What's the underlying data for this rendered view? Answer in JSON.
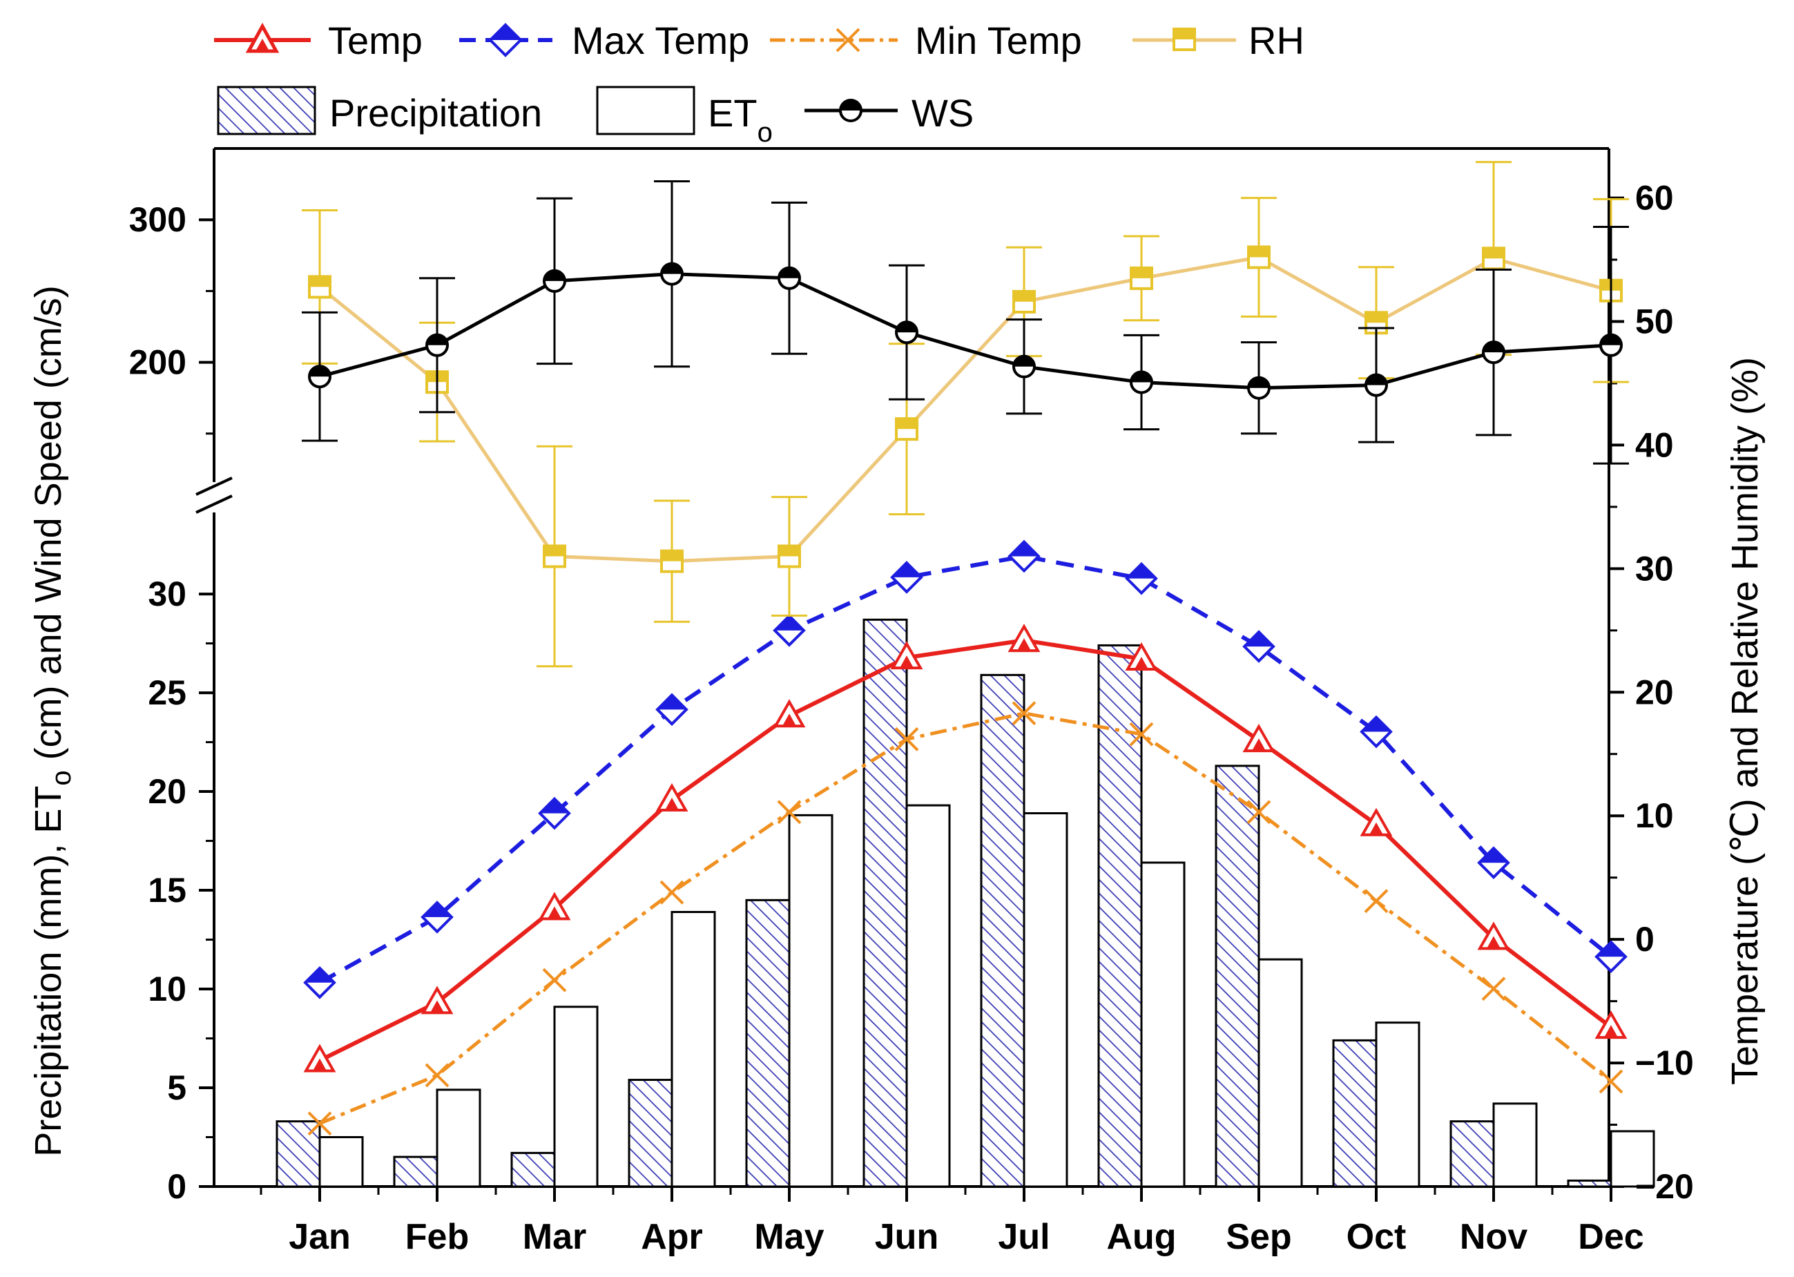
{
  "chart_data": {
    "type": "bar",
    "categories": [
      "Jan",
      "Feb",
      "Mar",
      "Apr",
      "May",
      "Jun",
      "Jul",
      "Aug",
      "Sep",
      "Oct",
      "Nov",
      "Dec"
    ],
    "left_axis": {
      "label": "Precipitation (mm), ET",
      "label_sub": "o",
      "label_tail": " (cm) and Wind Speed (cm/s)",
      "lower_ticks": [
        0,
        5,
        10,
        15,
        20,
        25,
        30
      ],
      "lower_range": [
        0,
        33.5
      ],
      "upper_ticks": [
        200,
        300
      ],
      "upper_range": [
        115,
        350
      ]
    },
    "right_axis": {
      "label": "Temperature (℃) and Relative Humidity (%)",
      "ticks": [
        -20,
        -10,
        0,
        10,
        20,
        30,
        40,
        50,
        60
      ],
      "tick_labels": [
        "−20",
        "−10",
        "0",
        "10",
        "20",
        "30",
        "40",
        "50",
        "60"
      ],
      "range": [
        -20,
        64
      ]
    },
    "bars": [
      {
        "name": "Precipitation",
        "values": [
          3.3,
          1.5,
          1.7,
          5.4,
          14.5,
          28.7,
          25.9,
          27.4,
          21.3,
          7.4,
          3.3,
          0.3
        ]
      },
      {
        "name": "ET",
        "name_sub": "o",
        "values": [
          2.5,
          4.9,
          9.1,
          13.9,
          18.8,
          19.3,
          18.9,
          16.4,
          11.5,
          8.3,
          4.2,
          2.8
        ]
      }
    ],
    "series": [
      {
        "name": "Temp",
        "axis": "right",
        "values": [
          -9.8,
          -5.1,
          2.5,
          11.3,
          18.1,
          22.8,
          24.2,
          22.7,
          16.1,
          9.3,
          0.1,
          -7.1
        ],
        "color": "#e8211c"
      },
      {
        "name": "Max Temp",
        "axis": "right",
        "values": [
          -3.5,
          1.8,
          10.2,
          18.6,
          25.0,
          29.3,
          31.0,
          29.2,
          23.7,
          16.8,
          6.2,
          -1.4
        ],
        "color": "#1d1de0"
      },
      {
        "name": "Min Temp",
        "axis": "right",
        "values": [
          -14.9,
          -11.0,
          -3.3,
          3.8,
          10.3,
          16.2,
          18.3,
          16.6,
          10.3,
          3.1,
          -4.0,
          -11.5
        ],
        "color": "#f09020"
      },
      {
        "name": "RH",
        "axis": "right",
        "values": [
          52.8,
          45.1,
          31.0,
          30.6,
          31.0,
          41.3,
          51.6,
          53.5,
          55.2,
          49.9,
          55.1,
          52.5
        ],
        "err": [
          6.2,
          4.8,
          8.9,
          4.9,
          4.8,
          6.9,
          4.4,
          3.4,
          4.8,
          4.5,
          7.8,
          7.4
        ],
        "color": "#e7c42a"
      },
      {
        "name": "WS",
        "axis": "left-upper",
        "values": [
          190,
          212,
          257,
          262,
          259,
          221,
          197,
          186,
          182,
          184,
          207,
          212
        ],
        "err": [
          45,
          47,
          58,
          65,
          53,
          47,
          33,
          33,
          32,
          40,
          58,
          83
        ],
        "color": "#000000"
      }
    ],
    "legend": [
      {
        "name": "Temp"
      },
      {
        "name": "Max Temp"
      },
      {
        "name": "Min Temp"
      },
      {
        "name": "RH"
      },
      {
        "name": "Precipitation"
      },
      {
        "name": "ET",
        "sub": "o"
      },
      {
        "name": "WS"
      }
    ],
    "legend_position": "top"
  }
}
